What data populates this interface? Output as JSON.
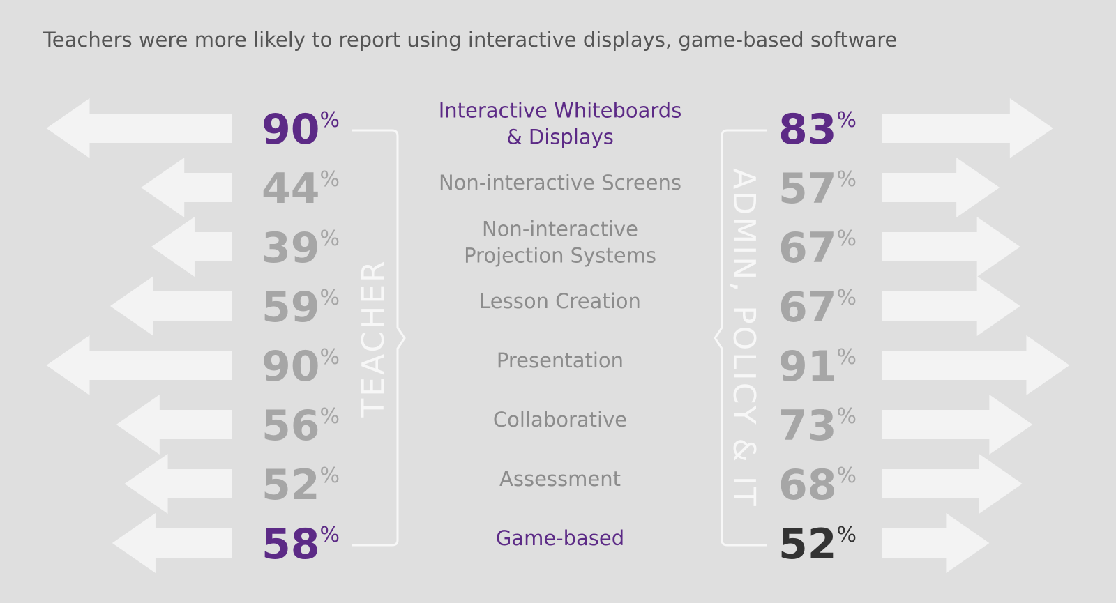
{
  "chart_data": {
    "type": "arrow-butterfly",
    "title": "Teachers were more likely to report using interactive displays, game-based software",
    "categories": [
      "Interactive Whiteboards\n& Displays",
      "Non-interactive Screens",
      "Non-interactive\nProjection Systems",
      "Lesson Creation",
      "Presentation",
      "Collaborative",
      "Assessment",
      "Game-based"
    ],
    "category_colors": [
      "#5c2a86",
      "#8c8c8c",
      "#8c8c8c",
      "#8c8c8c",
      "#8c8c8c",
      "#8c8c8c",
      "#8c8c8c",
      "#5c2a86"
    ],
    "series": [
      {
        "name": "TEACHER",
        "values": [
          90,
          44,
          39,
          59,
          90,
          56,
          52,
          58
        ],
        "value_labels": [
          "90%",
          "44%",
          "39%",
          "59%",
          "90%",
          "56%",
          "52%",
          "58%"
        ],
        "colors": [
          "#5c2a86",
          "#a6a6a6",
          "#a6a6a6",
          "#a6a6a6",
          "#a6a6a6",
          "#a6a6a6",
          "#a6a6a6",
          "#5c2a86"
        ]
      },
      {
        "name": "ADMIN, POLICY & IT",
        "values": [
          83,
          57,
          67,
          67,
          91,
          73,
          68,
          52
        ],
        "value_labels": [
          "83%",
          "57%",
          "67%",
          "67%",
          "91%",
          "73%",
          "68%",
          "52%"
        ],
        "colors": [
          "#5c2a86",
          "#a6a6a6",
          "#a6a6a6",
          "#a6a6a6",
          "#a6a6a6",
          "#a6a6a6",
          "#a6a6a6",
          "#333333"
        ]
      }
    ]
  }
}
